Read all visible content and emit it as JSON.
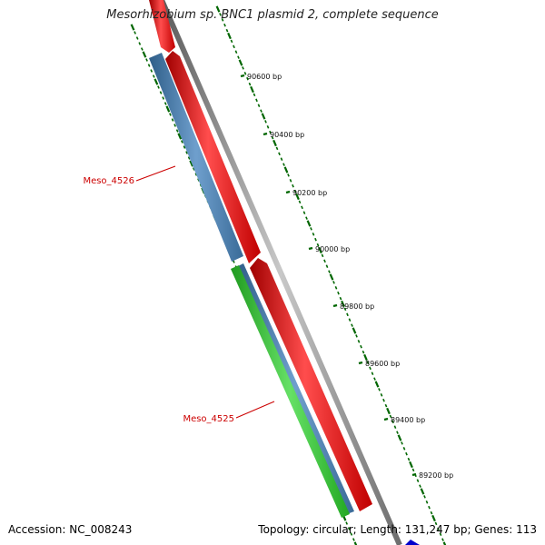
{
  "map": {
    "title": "Mesorhizobium sp. BNC1 plasmid 2, complete sequence",
    "accession": "Accession: NC_008243",
    "topology": "Topology: circular; Length: 131,247 bp; Genes: 113"
  },
  "ticks": [
    {
      "label": "90600 bp",
      "pos": 90600
    },
    {
      "label": "90400 bp",
      "pos": 90400
    },
    {
      "label": "90200 bp",
      "pos": 90200
    },
    {
      "label": "90000 bp",
      "pos": 90000
    },
    {
      "label": "89800 bp",
      "pos": 89800
    },
    {
      "label": "89600 bp",
      "pos": 89600
    },
    {
      "label": "89400 bp",
      "pos": 89400
    },
    {
      "label": "89200 bp",
      "pos": 89200
    }
  ],
  "gene_labels": [
    {
      "text": "Meso_4526"
    },
    {
      "text": "Meso_4525"
    }
  ],
  "colors": {
    "backbone": "#8a8a8a",
    "cds_red": "#ff0000",
    "gene_blue": "#4a7fb0",
    "gene_green": "#33c233",
    "tick_green": "#006600",
    "label_red": "#cc0000",
    "blue_marker": "#0000cc"
  }
}
